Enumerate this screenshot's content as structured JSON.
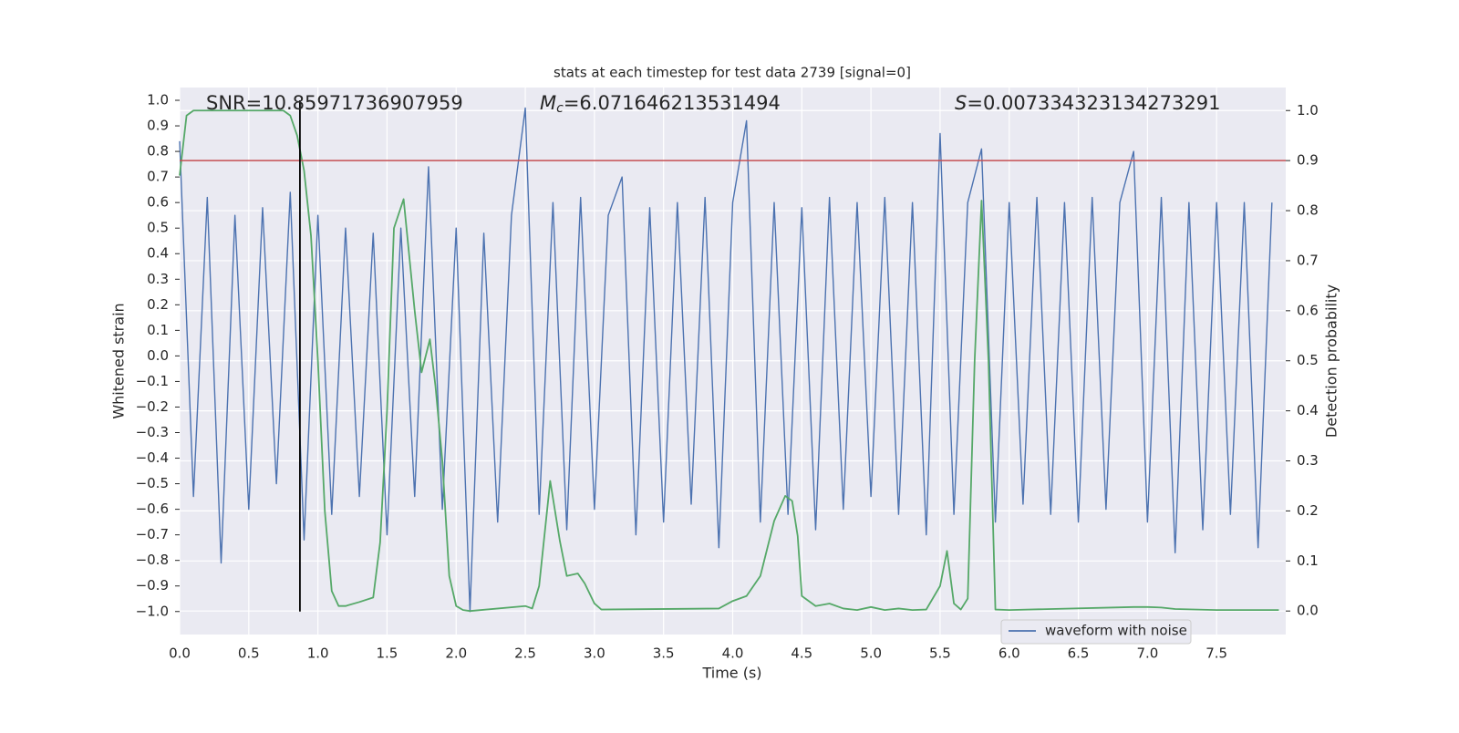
{
  "chart_data": {
    "type": "line",
    "title": "stats at each timestep for test data 2739 [signal=0]",
    "xlabel": "Time (s)",
    "ylabel": "Whitened strain",
    "y2label": "Detection probability",
    "annotations": [
      {
        "text": "SNR=10.85971736907959"
      },
      {
        "symbol": "M",
        "subscript": "c",
        "text": "=6.071646213531494"
      },
      {
        "symbol": "S",
        "text": "=0.007334323134273291"
      }
    ],
    "xlim": [
      0,
      8
    ],
    "ylim": [
      -1.09,
      1.05
    ],
    "y2lim": [
      -0.047,
      1.046
    ],
    "xticks": [
      {
        "value": 0,
        "label": "0.0"
      },
      0.5,
      {
        "value": 1,
        "label": "1.0"
      },
      1.5,
      {
        "value": 2,
        "label": "2.0"
      },
      2.5,
      {
        "value": 3,
        "label": "3.0"
      },
      3.5,
      {
        "value": 4,
        "label": "4.0"
      },
      4.5,
      {
        "value": 5,
        "label": "5.0"
      },
      5.5,
      {
        "value": 6,
        "label": "6.0"
      },
      6.5,
      {
        "value": 7,
        "label": "7.0"
      },
      7.5
    ],
    "yticks": [
      {
        "value": -1.0,
        "label": "−1.0"
      },
      {
        "value": -0.9,
        "label": "−0.9"
      },
      {
        "value": -0.8,
        "label": "−0.8"
      },
      {
        "value": -0.7,
        "label": "−0.7"
      },
      {
        "value": -0.6,
        "label": "−0.6"
      },
      {
        "value": -0.5,
        "label": "−0.5"
      },
      {
        "value": -0.4,
        "label": "−0.4"
      },
      {
        "value": -0.3,
        "label": "−0.3"
      },
      {
        "value": -0.2,
        "label": "−0.2"
      },
      {
        "value": -0.1,
        "label": "−0.1"
      },
      {
        "value": 0,
        "label": "0.0"
      },
      0.1,
      0.2,
      0.3,
      0.4,
      0.5,
      0.6,
      0.7,
      0.8,
      0.9,
      {
        "value": 1,
        "label": "1.0"
      }
    ],
    "y2ticks": [
      {
        "value": 0,
        "label": "0.0"
      },
      0.1,
      0.2,
      0.3,
      0.4,
      0.5,
      0.6,
      0.7,
      0.8,
      0.9,
      {
        "value": 1,
        "label": "1.0"
      }
    ],
    "grid": true,
    "legend": "lower right",
    "threshold": {
      "value": 0.9,
      "axis": "y2",
      "color": "#c44e52"
    },
    "vline": {
      "x": 0.87,
      "ymin": -1.0,
      "ymax": 1.0,
      "color": "#000000"
    },
    "series": [
      {
        "name": "waveform with noise",
        "color": "#4c72b0",
        "x": [
          0.0,
          0.1,
          0.2,
          0.3,
          0.4,
          0.5,
          0.6,
          0.7,
          0.8,
          0.9,
          1.0,
          1.1,
          1.2,
          1.3,
          1.4,
          1.5,
          1.6,
          1.7,
          1.8,
          1.9,
          2.0,
          2.1,
          2.2,
          2.3,
          2.4,
          2.5,
          2.6,
          2.7,
          2.8,
          2.9,
          3.0,
          3.1,
          3.2,
          3.3,
          3.4,
          3.5,
          3.6,
          3.7,
          3.8,
          3.9,
          4.0,
          4.1,
          4.2,
          4.3,
          4.4,
          4.5,
          4.6,
          4.7,
          4.8,
          4.9,
          5.0,
          5.1,
          5.2,
          5.3,
          5.4,
          5.5,
          5.6,
          5.7,
          5.8,
          5.9,
          6.0,
          6.1,
          6.2,
          6.3,
          6.4,
          6.5,
          6.6,
          6.7,
          6.8,
          6.9,
          7.0,
          7.1,
          7.2,
          7.3,
          7.4,
          7.5,
          7.6,
          7.7,
          7.8,
          7.9
        ],
        "values": [
          0.84,
          -0.55,
          0.62,
          -0.81,
          0.55,
          -0.6,
          0.58,
          -0.5,
          0.64,
          -0.72,
          0.55,
          -0.62,
          0.5,
          -0.55,
          0.48,
          -0.7,
          0.5,
          -0.55,
          0.74,
          -0.6,
          0.5,
          -1.0,
          0.48,
          -0.65,
          0.55,
          0.97,
          -0.62,
          0.6,
          -0.68,
          0.62,
          -0.6,
          0.55,
          0.7,
          -0.7,
          0.58,
          -0.65,
          0.6,
          -0.58,
          0.62,
          -0.75,
          0.6,
          0.92,
          -0.65,
          0.6,
          -0.62,
          0.58,
          -0.68,
          0.62,
          -0.6,
          0.6,
          -0.55,
          0.62,
          -0.62,
          0.6,
          -0.7,
          0.87,
          -0.62,
          0.6,
          0.81,
          -0.65,
          0.6,
          -0.58,
          0.62,
          -0.62,
          0.6,
          -0.65,
          0.62,
          -0.6,
          0.6,
          0.8,
          -0.65,
          0.62,
          -0.77,
          0.6,
          -0.68,
          0.6,
          -0.62,
          0.6,
          -0.75,
          0.6
        ]
      },
      {
        "color": "#55a868",
        "axis": "y2",
        "x": [
          0.0,
          0.05,
          0.1,
          0.3,
          0.5,
          0.75,
          0.8,
          0.85,
          0.9,
          0.95,
          1.0,
          1.05,
          1.1,
          1.15,
          1.2,
          1.3,
          1.4,
          1.45,
          1.5,
          1.55,
          1.62,
          1.7,
          1.75,
          1.81,
          1.85,
          1.9,
          1.95,
          2.0,
          2.05,
          2.1,
          2.5,
          2.55,
          2.6,
          2.68,
          2.75,
          2.8,
          2.88,
          2.93,
          3.0,
          3.05,
          3.9,
          4.0,
          4.1,
          4.2,
          4.3,
          4.38,
          4.43,
          4.47,
          4.5,
          4.6,
          4.7,
          4.8,
          4.9,
          5.0,
          5.1,
          5.2,
          5.3,
          5.4,
          5.5,
          5.55,
          5.6,
          5.65,
          5.7,
          5.75,
          5.8,
          5.85,
          5.9,
          6.0,
          6.9,
          7.0,
          7.1,
          7.2,
          7.5,
          7.95
        ],
        "values": [
          0.87,
          0.99,
          1.0,
          1.0,
          1.0,
          1.0,
          0.99,
          0.95,
          0.88,
          0.75,
          0.5,
          0.2,
          0.04,
          0.01,
          0.01,
          0.018,
          0.027,
          0.137,
          0.4,
          0.765,
          0.823,
          0.6,
          0.477,
          0.543,
          0.45,
          0.3,
          0.07,
          0.01,
          0.002,
          0.0,
          0.01,
          0.005,
          0.05,
          0.26,
          0.14,
          0.07,
          0.075,
          0.055,
          0.015,
          0.003,
          0.005,
          0.02,
          0.03,
          0.07,
          0.18,
          0.23,
          0.22,
          0.15,
          0.03,
          0.01,
          0.015,
          0.005,
          0.002,
          0.008,
          0.002,
          0.005,
          0.002,
          0.003,
          0.05,
          0.12,
          0.015,
          0.003,
          0.025,
          0.5,
          0.82,
          0.5,
          0.003,
          0.002,
          0.008,
          0.008,
          0.007,
          0.004,
          0.002,
          0.002
        ]
      }
    ]
  }
}
